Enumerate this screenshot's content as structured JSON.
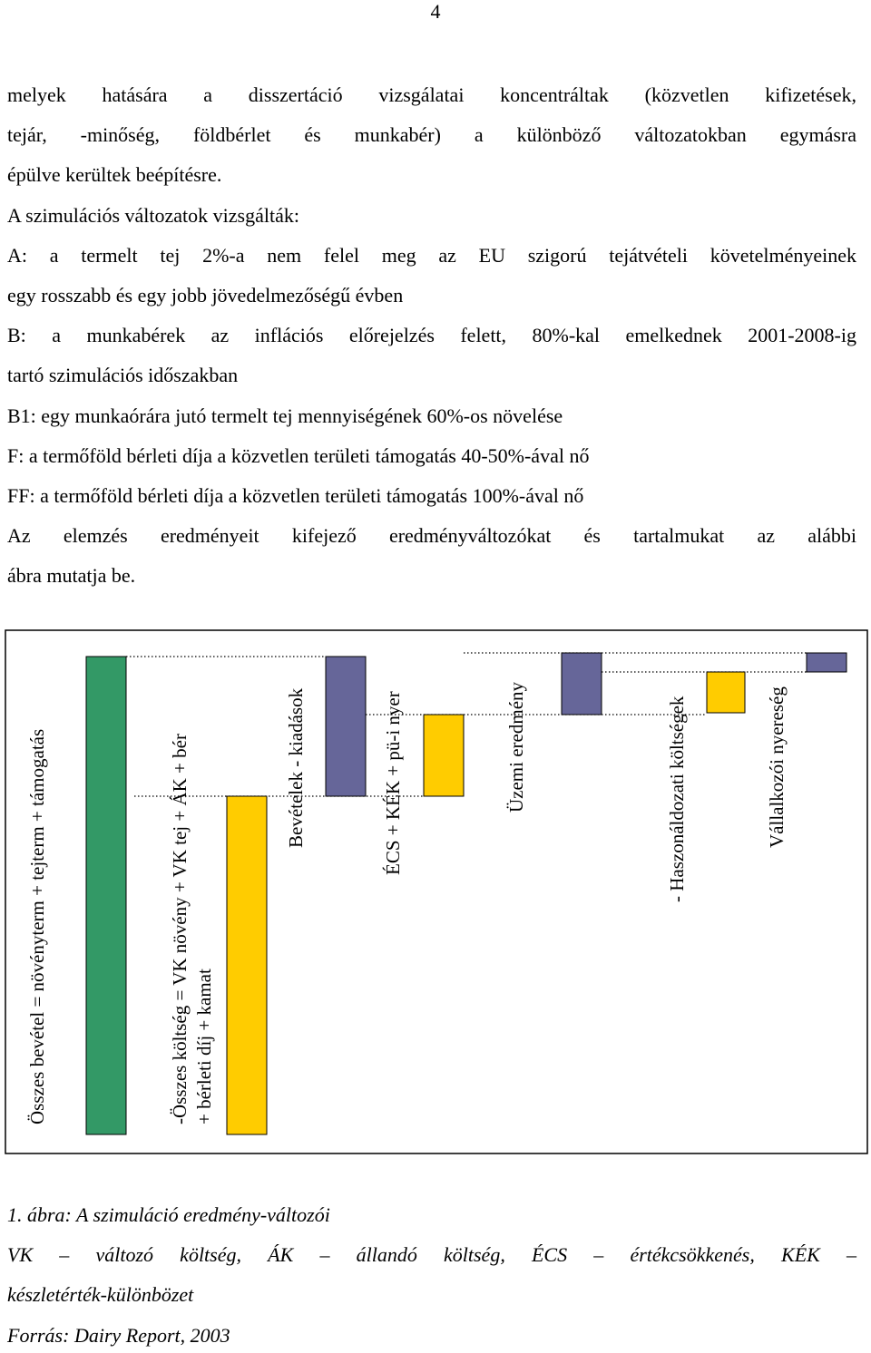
{
  "page_number": "4",
  "body_lines": [
    "melyek hatására a disszertáció vizsgálatai koncentráltak (közvetlen kifizetések,",
    "tejár, -minőség, földbérlet és munkabér) a különböző változatokban egymásra",
    "épülve kerültek beépítésre.",
    "A szimulációs változatok vizsgálták:",
    "A: a termelt tej 2%-a nem felel meg az EU szigorú tejátvételi követelményeinek",
    "egy rosszabb és egy jobb jövedelmezőségű évben",
    "B: a munkabérek az inflációs előrejelzés felett, 80%-kal emelkednek 2001-2008-ig",
    "tartó szimulációs időszakban",
    "B1: egy munkaórára jutó termelt tej mennyiségének 60%-os növelése",
    "F: a termőföld bérleti díja a közvetlen területi támogatás 40-50%-ával nő",
    "FF: a termőföld bérleti díja a közvetlen területi támogatás 100%-ával nő",
    "Az elemzés eredményeit kifejező eredményváltozókat és tartalmukat az alábbi",
    "ábra mutatja be."
  ],
  "diagram": {
    "labels": [
      "Összes bevétel = növényterm + tejterm + támogatás",
      "-Összes költség = VK növény + VK tej + ÁK + bér",
      "+ bérleti díj + kamat",
      "Bevételek - kiadások",
      "ÉCS + KÉK + pü-i nyer",
      "Üzemi eredmény",
      "- Haszonáldozati költségek",
      "Vállalkozói nyereség"
    ]
  },
  "caption_lines": [
    "1. ábra: A szimuláció eredmény-változói",
    "VK – változó költség, ÁK – állandó költség, ÉCS – értékcsökkenés, KÉK –",
    "készletérték-különbözet",
    "Forrás: Dairy Report, 2003"
  ]
}
